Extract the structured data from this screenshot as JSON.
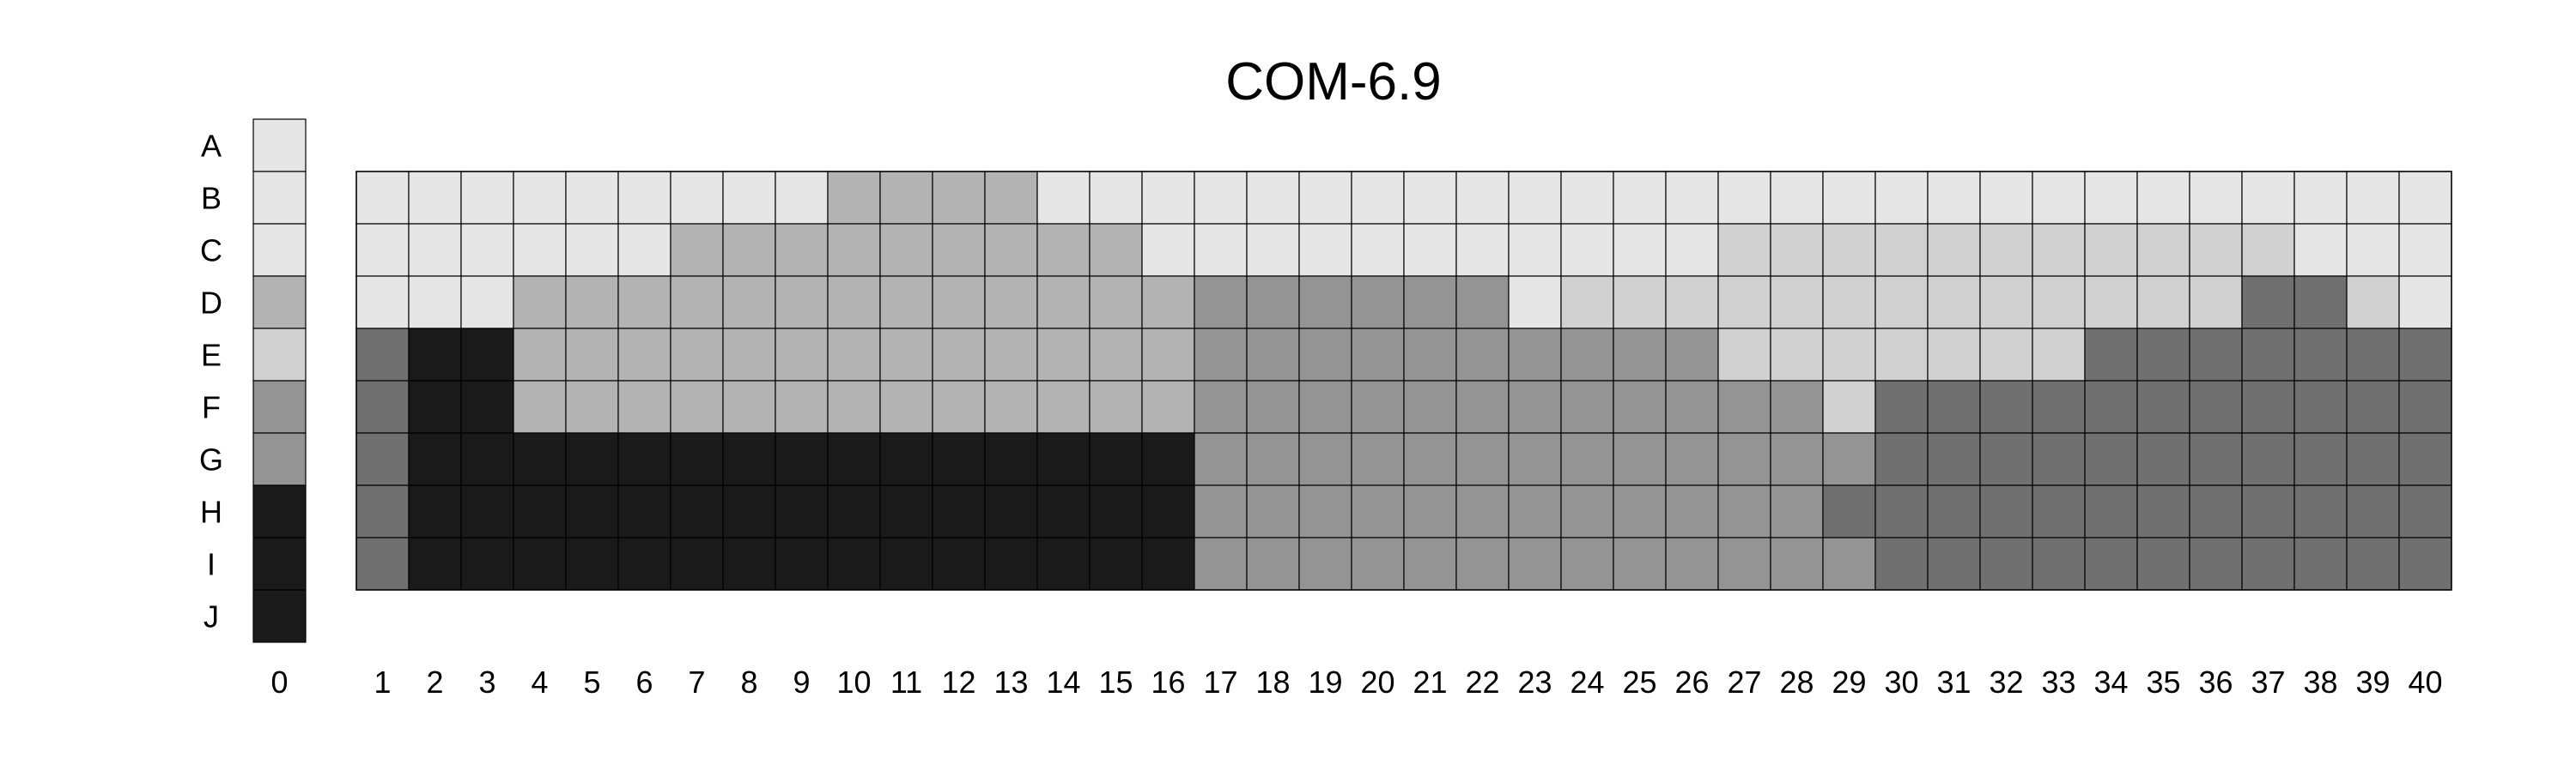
{
  "chart_data": {
    "type": "heatmap",
    "title": "COM-6.9",
    "row_labels": [
      "A",
      "B",
      "C",
      "D",
      "E",
      "F",
      "G",
      "H",
      "I",
      "J"
    ],
    "column_labels": [
      "1",
      "2",
      "3",
      "4",
      "5",
      "6",
      "7",
      "8",
      "9",
      "10",
      "11",
      "12",
      "13",
      "14",
      "15",
      "16",
      "17",
      "18",
      "19",
      "20",
      "21",
      "22",
      "23",
      "24",
      "25",
      "26",
      "27",
      "28",
      "29",
      "30",
      "31",
      "32",
      "33",
      "34",
      "35",
      "36",
      "37",
      "38",
      "39",
      "40"
    ],
    "reference_column": {
      "label": "0",
      "values": [
        "A",
        "B",
        "C",
        "D",
        "E",
        "F",
        "G",
        "H",
        "I",
        "J"
      ]
    },
    "grid_rows": [
      "B",
      "C",
      "D",
      "E",
      "F",
      "G",
      "H",
      "I"
    ],
    "grid": [
      [
        "B",
        "B",
        "B",
        "B",
        "B",
        "B",
        "B",
        "B",
        "B",
        "D",
        "D",
        "D",
        "D",
        "B",
        "B",
        "B",
        "B",
        "B",
        "B",
        "B",
        "B",
        "B",
        "B",
        "B",
        "B",
        "B",
        "B",
        "B",
        "B",
        "B",
        "B",
        "B",
        "B",
        "B",
        "B",
        "B",
        "B",
        "B",
        "B",
        "B"
      ],
      [
        "B",
        "B",
        "B",
        "B",
        "B",
        "B",
        "D",
        "D",
        "D",
        "D",
        "D",
        "D",
        "D",
        "D",
        "D",
        "B",
        "B",
        "B",
        "B",
        "B",
        "B",
        "B",
        "B",
        "B",
        "B",
        "B",
        "E",
        "E",
        "E",
        "E",
        "E",
        "E",
        "E",
        "E",
        "E",
        "E",
        "E",
        "B",
        "B",
        "B"
      ],
      [
        "B",
        "B",
        "B",
        "D",
        "D",
        "D",
        "D",
        "D",
        "D",
        "D",
        "D",
        "D",
        "D",
        "D",
        "D",
        "D",
        "F",
        "F",
        "F",
        "F",
        "F",
        "F",
        "B",
        "E",
        "E",
        "E",
        "E",
        "E",
        "E",
        "E",
        "E",
        "E",
        "E",
        "E",
        "E",
        "E",
        "H",
        "H",
        "E",
        "B"
      ],
      [
        "H",
        "J",
        "J",
        "D",
        "D",
        "D",
        "D",
        "D",
        "D",
        "D",
        "D",
        "D",
        "D",
        "D",
        "D",
        "D",
        "F",
        "F",
        "F",
        "F",
        "F",
        "F",
        "F",
        "F",
        "F",
        "F",
        "E",
        "E",
        "E",
        "E",
        "E",
        "E",
        "E",
        "H",
        "H",
        "H",
        "H",
        "H",
        "H",
        "H"
      ],
      [
        "H",
        "J",
        "J",
        "D",
        "D",
        "D",
        "D",
        "D",
        "D",
        "D",
        "D",
        "D",
        "D",
        "D",
        "D",
        "D",
        "F",
        "F",
        "F",
        "F",
        "F",
        "F",
        "F",
        "F",
        "F",
        "F",
        "F",
        "F",
        "E",
        "H",
        "H",
        "H",
        "H",
        "H",
        "H",
        "H",
        "H",
        "H",
        "H",
        "H"
      ],
      [
        "H",
        "J",
        "J",
        "J",
        "J",
        "J",
        "J",
        "J",
        "J",
        "J",
        "J",
        "J",
        "J",
        "J",
        "J",
        "J",
        "F",
        "F",
        "F",
        "F",
        "F",
        "F",
        "F",
        "F",
        "F",
        "F",
        "F",
        "F",
        "F",
        "H",
        "H",
        "H",
        "H",
        "H",
        "H",
        "H",
        "H",
        "H",
        "H",
        "H"
      ],
      [
        "H",
        "J",
        "J",
        "J",
        "J",
        "J",
        "J",
        "J",
        "J",
        "J",
        "J",
        "J",
        "J",
        "J",
        "J",
        "J",
        "F",
        "F",
        "F",
        "F",
        "F",
        "F",
        "F",
        "F",
        "F",
        "F",
        "F",
        "F",
        "H",
        "H",
        "H",
        "H",
        "H",
        "H",
        "H",
        "H",
        "H",
        "H",
        "H",
        "H"
      ],
      [
        "H",
        "J",
        "J",
        "J",
        "J",
        "J",
        "J",
        "J",
        "J",
        "J",
        "J",
        "J",
        "J",
        "J",
        "J",
        "J",
        "F",
        "F",
        "F",
        "F",
        "F",
        "F",
        "F",
        "F",
        "F",
        "F",
        "F",
        "F",
        "F",
        "H",
        "H",
        "H",
        "H",
        "H",
        "H",
        "H",
        "H",
        "H",
        "H",
        "H"
      ]
    ],
    "level_colors": {
      "A": "#e6e6e6",
      "B": "#e6e6e6",
      "C": "#e6e6e6",
      "D": "#b3b3b3",
      "E": "#d1d1d1",
      "F": "#949494",
      "G": "#949494",
      "H": "#1a1a1a",
      "I": "#1a1a1a",
      "J": "#1a1a1a"
    },
    "grid_colors": {
      "B": "#e6e6e6",
      "D": "#b3b3b3",
      "E": "#d1d1d1",
      "F": "#949494",
      "H": "#707070",
      "J": "#1a1a1a"
    },
    "grid_lines": true,
    "legend": "none"
  }
}
